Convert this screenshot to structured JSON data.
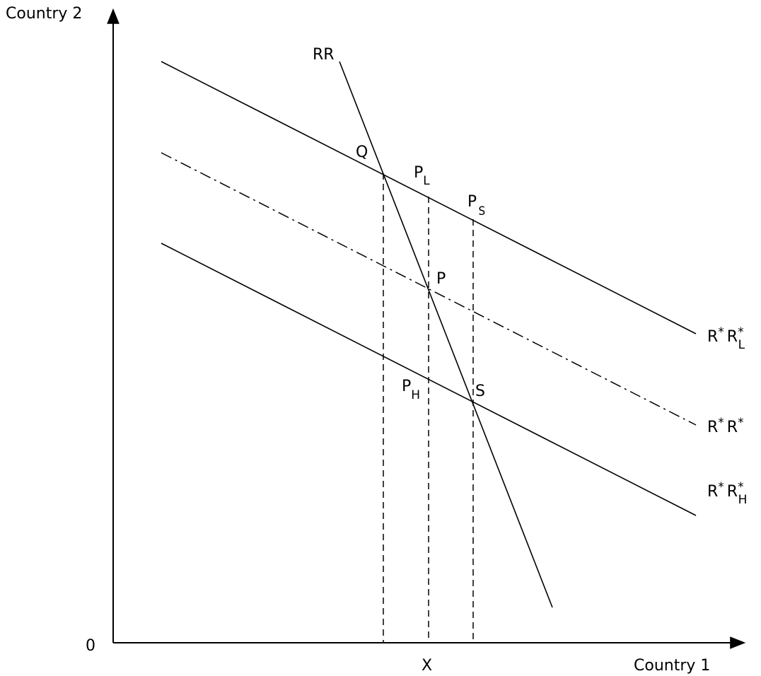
{
  "axes": {
    "y_label": "Country 2",
    "x_label": "Country 1",
    "origin_label": "0",
    "x_tick_label": "X"
  },
  "curves": {
    "rr": "RR",
    "upper_base": "R",
    "upper_sup": "*",
    "upper_mid": "R",
    "upper_sup2": "*",
    "upper_sub": "L",
    "middle_base": "R",
    "middle_sup": "*",
    "middle_mid": "R",
    "middle_sup2": "*",
    "lower_base": "R",
    "lower_sup": "*",
    "lower_mid": "R",
    "lower_sup2": "*",
    "lower_sub": "H"
  },
  "points": {
    "q": "Q",
    "pl_base": "P",
    "pl_sub": "L",
    "ps_base": "P",
    "ps_sub": "S",
    "p": "P",
    "ph_base": "P",
    "ph_sub": "H",
    "s": "S"
  }
}
